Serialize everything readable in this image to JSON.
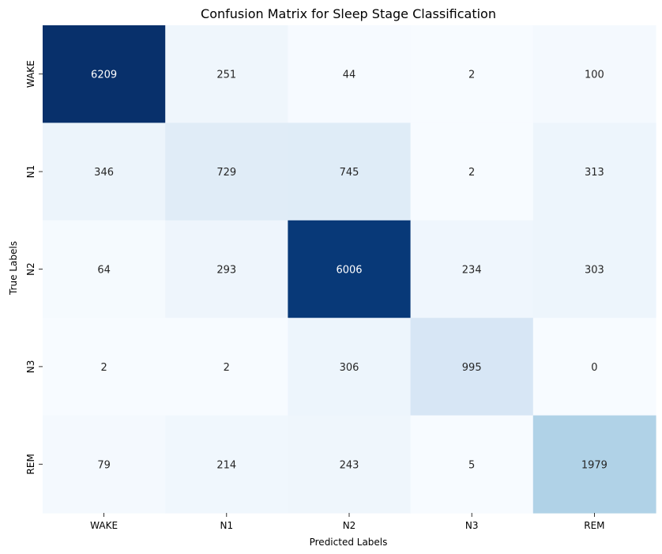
{
  "chart_data": {
    "type": "heatmap",
    "title": "Confusion Matrix for Sleep Stage Classification",
    "xlabel": "Predicted Labels",
    "ylabel": "True Labels",
    "x_categories": [
      "WAKE",
      "N1",
      "N2",
      "N3",
      "REM"
    ],
    "y_categories": [
      "WAKE",
      "N1",
      "N2",
      "N3",
      "REM"
    ],
    "values": [
      [
        6209,
        251,
        44,
        2,
        100
      ],
      [
        346,
        729,
        745,
        2,
        313
      ],
      [
        64,
        293,
        6006,
        234,
        303
      ],
      [
        2,
        2,
        306,
        995,
        0
      ],
      [
        79,
        214,
        243,
        5,
        1979
      ]
    ],
    "colormap": "Blues",
    "colorbar": false,
    "annotations": true
  }
}
